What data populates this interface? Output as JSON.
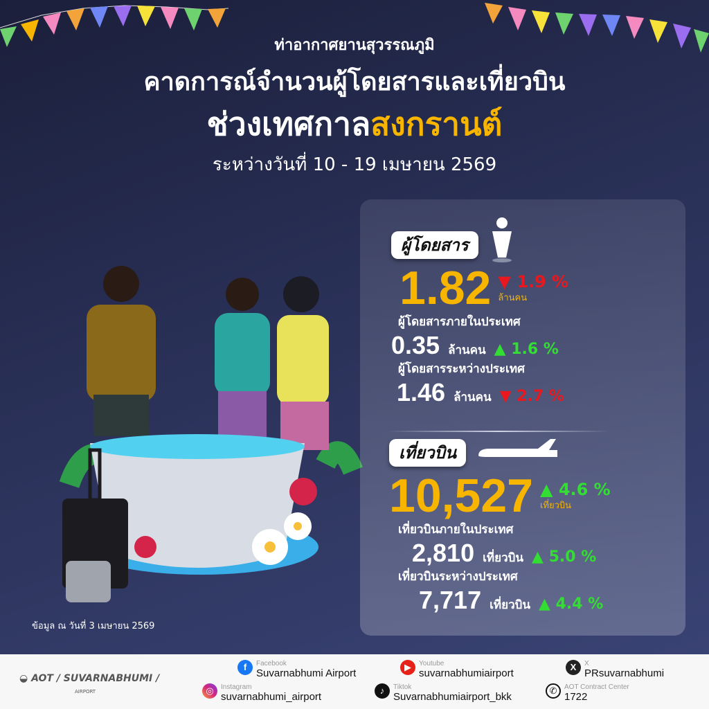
{
  "header": {
    "org": "ท่าอากาศยานสุวรรณภูมิ",
    "title": "คาดการณ์จำนวนผู้โดยสารและเที่ยวบิน",
    "subtitle_prefix": "ช่วงเทศกาล",
    "subtitle_highlight": "สงกรานต์",
    "date_range": "ระหว่างวันที่ 10 - 19 เมษายน 2569"
  },
  "colors": {
    "accent": "#f7b500",
    "down": "#e8181e",
    "up": "#33dd33",
    "background": "#2a3158"
  },
  "passengers": {
    "label": "ผู้โดยสาร",
    "icon": "person-icon",
    "total": "1.82",
    "total_unit": "ล้านคน",
    "total_change": "1.9 %",
    "total_trend": "down",
    "domestic_label": "ผู้โดยสารภายในประเทศ",
    "domestic": "0.35",
    "domestic_unit": "ล้านคน",
    "domestic_change": "1.6 %",
    "domestic_trend": "up",
    "intl_label": "ผู้โดยสารระหว่างประเทศ",
    "intl": "1.46",
    "intl_unit": "ล้านคน",
    "intl_change": "2.7 %",
    "intl_trend": "down"
  },
  "flights": {
    "label": "เที่ยวบิน",
    "icon": "airplane-icon",
    "total": "10,527",
    "total_unit": "เที่ยวบิน",
    "total_change": "4.6 %",
    "total_trend": "up",
    "domestic_label": "เที่ยวบินภายในประเทศ",
    "domestic": "2,810",
    "domestic_unit": "เที่ยวบิน",
    "domestic_change": "5.0 %",
    "domestic_trend": "up",
    "intl_label": "เที่ยวบินระหว่างประเทศ",
    "intl": "7,717",
    "intl_unit": "เที่ยวบิน",
    "intl_change": "4.4 %",
    "intl_trend": "up"
  },
  "note": "ข้อมูล ณ วันที่ 3 เมษายน 2569",
  "footer": {
    "logo": "AOT / SUVARNABHUMI /",
    "logo_sub": "AIRPORT",
    "contacts": [
      {
        "platform": "Facebook",
        "handle": "Suvarnabhumi Airport",
        "icon": "facebook-icon",
        "color": "#1877f2"
      },
      {
        "platform": "Youtube",
        "handle": "suvarnabhumiairport",
        "icon": "youtube-icon",
        "color": "#e62117"
      },
      {
        "platform": "X",
        "handle": "PRsuvarnabhumi",
        "icon": "x-icon",
        "color": "#222"
      },
      {
        "platform": "Instagram",
        "handle": "suvarnabhumi_airport",
        "icon": "instagram-icon",
        "color": "#d62976"
      },
      {
        "platform": "Tiktok",
        "handle": "Suvarnabhumiairport_bkk",
        "icon": "tiktok-icon",
        "color": "#111"
      },
      {
        "platform": "AOT Contract Center",
        "handle": "1722",
        "icon": "phone-icon",
        "color": "#fff"
      }
    ]
  }
}
